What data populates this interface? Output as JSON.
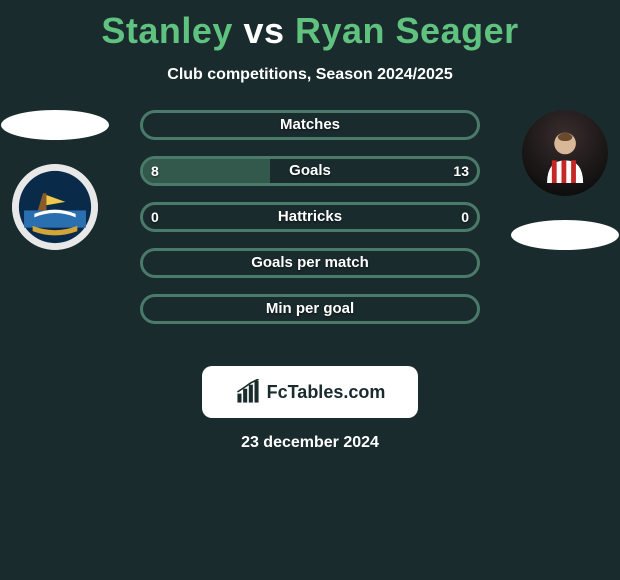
{
  "colors": {
    "background": "#1a2b2e",
    "accent_green": "#5fc27e",
    "bar_border": "#4a7a69",
    "bar_fill": "#33594c",
    "white": "#ffffff"
  },
  "title": {
    "left": "Stanley",
    "vs": "vs",
    "right": "Ryan Seager",
    "fontsize": 36
  },
  "subtitle": "Club competitions, Season 2024/2025",
  "players": {
    "left": {
      "name": "Stanley",
      "avatar_desc": "club-crest-ship",
      "oval_position": "top"
    },
    "right": {
      "name": "Ryan Seager",
      "avatar_desc": "player-red-white-stripes",
      "oval_position": "bottom"
    }
  },
  "bars": [
    {
      "label": "Matches",
      "left": null,
      "right": null,
      "fill_pct": 0
    },
    {
      "label": "Goals",
      "left": "8",
      "right": "13",
      "fill_pct": 38
    },
    {
      "label": "Hattricks",
      "left": "0",
      "right": "0",
      "fill_pct": 0
    },
    {
      "label": "Goals per match",
      "left": null,
      "right": null,
      "fill_pct": 0
    },
    {
      "label": "Min per goal",
      "left": null,
      "right": null,
      "fill_pct": 0
    }
  ],
  "bar_style": {
    "height": 30,
    "border_width": 3,
    "border_radius": 16,
    "gap": 16,
    "label_fontsize": 15,
    "value_fontsize": 14
  },
  "footer": {
    "logo_text": "FcTables.com",
    "date": "23 december 2024"
  }
}
